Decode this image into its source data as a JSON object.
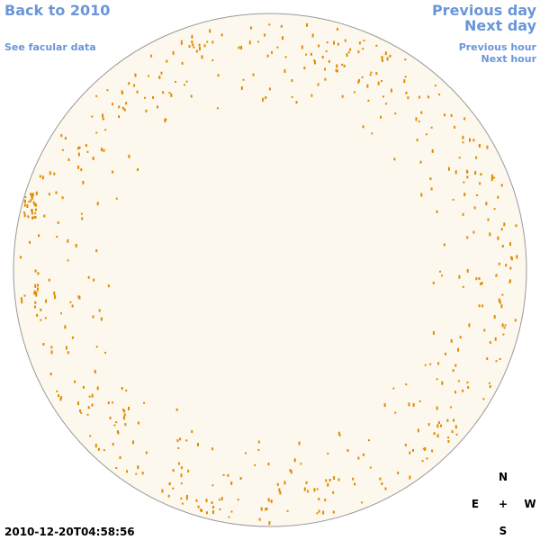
{
  "links": {
    "back": "Back to 2010",
    "facular": "See facular data",
    "previous_day": "Previous day",
    "next_day": "Next day",
    "previous_hour": "Previous hour",
    "next_hour": "Next hour"
  },
  "timestamp": "2010-12-20T04:58:56",
  "compass": {
    "north": "N",
    "east": "E",
    "center": "+",
    "west": "W",
    "south": "S"
  }
}
